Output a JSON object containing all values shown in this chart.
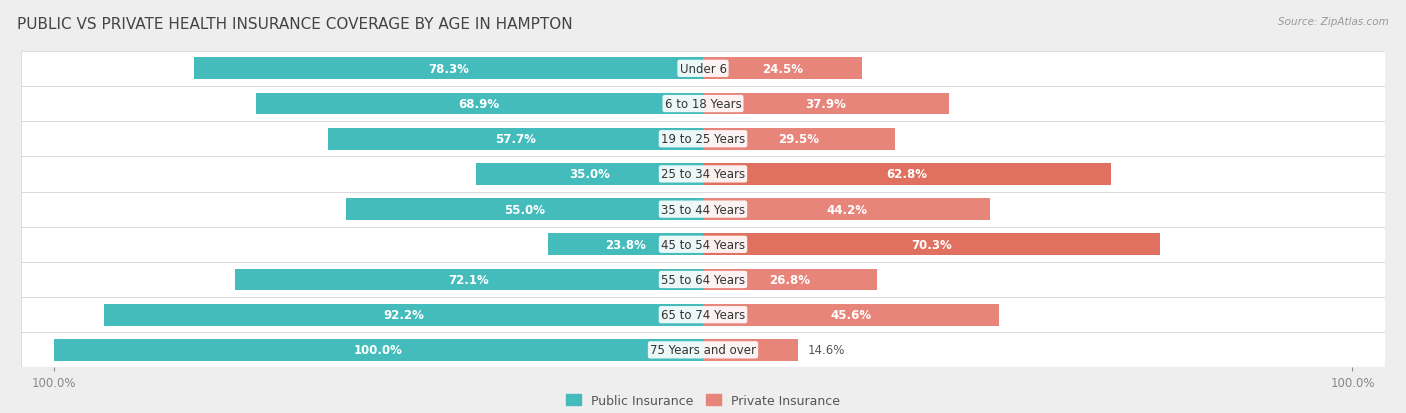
{
  "title": "PUBLIC VS PRIVATE HEALTH INSURANCE COVERAGE BY AGE IN HAMPTON",
  "source": "Source: ZipAtlas.com",
  "categories": [
    "Under 6",
    "6 to 18 Years",
    "19 to 25 Years",
    "25 to 34 Years",
    "35 to 44 Years",
    "45 to 54 Years",
    "55 to 64 Years",
    "65 to 74 Years",
    "75 Years and over"
  ],
  "public_values": [
    78.3,
    68.9,
    57.7,
    35.0,
    55.0,
    23.8,
    72.1,
    92.2,
    100.0
  ],
  "private_values": [
    24.5,
    37.9,
    29.5,
    62.8,
    44.2,
    70.3,
    26.8,
    45.6,
    14.6
  ],
  "public_color": "#45BCBC",
  "private_color": "#E8857A",
  "private_color_bright": "#E07060",
  "background_color": "#eeeeee",
  "row_bg_even": "#f5f5f5",
  "row_bg_odd": "#ebebeb",
  "max_value": 100.0,
  "title_fontsize": 11,
  "label_fontsize": 8.5,
  "tick_fontsize": 8.5,
  "legend_fontsize": 9,
  "inside_threshold": 15
}
